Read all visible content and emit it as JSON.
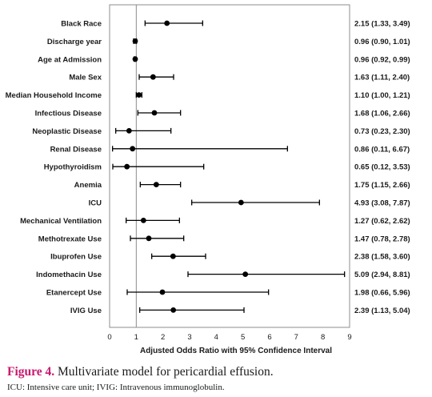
{
  "chart_data": {
    "type": "scatter",
    "subtype": "forest-plot",
    "xlabel": "Adjusted Odds Ratio with 95% Confidence Interval",
    "xlim": [
      0,
      9
    ],
    "xticks": [
      "0",
      "1",
      "2",
      "3",
      "4",
      "5",
      "6",
      "7",
      "8",
      "9"
    ],
    "reference_line": 1,
    "rows": [
      {
        "label": "Black Race",
        "or": 2.15,
        "lo": 1.33,
        "hi": 3.49,
        "text": "2.15 (1.33, 3.49)"
      },
      {
        "label": "Discharge year",
        "or": 0.96,
        "lo": 0.9,
        "hi": 1.01,
        "text": "0.96 (0.90, 1.01)"
      },
      {
        "label": "Age at Admission",
        "or": 0.96,
        "lo": 0.92,
        "hi": 0.99,
        "text": "0.96 (0.92, 0.99)"
      },
      {
        "label": "Male Sex",
        "or": 1.63,
        "lo": 1.11,
        "hi": 2.4,
        "text": "1.63 (1.11, 2.40)"
      },
      {
        "label": "Median Household Income",
        "or": 1.1,
        "lo": 1.0,
        "hi": 1.21,
        "text": "1.10 (1.00, 1.21)"
      },
      {
        "label": "Infectious Disease",
        "or": 1.68,
        "lo": 1.06,
        "hi": 2.66,
        "text": "1.68 (1.06, 2.66)"
      },
      {
        "label": "Neoplastic Disease",
        "or": 0.73,
        "lo": 0.23,
        "hi": 2.3,
        "text": "0.73 (0.23, 2.30)"
      },
      {
        "label": "Renal Disease",
        "or": 0.86,
        "lo": 0.11,
        "hi": 6.67,
        "text": "0.86 (0.11, 6.67)"
      },
      {
        "label": "Hypothyroidism",
        "or": 0.65,
        "lo": 0.12,
        "hi": 3.53,
        "text": "0.65 (0.12, 3.53)"
      },
      {
        "label": "Anemia",
        "or": 1.75,
        "lo": 1.15,
        "hi": 2.66,
        "text": "1.75 (1.15, 2.66)"
      },
      {
        "label": "ICU",
        "or": 4.93,
        "lo": 3.08,
        "hi": 7.87,
        "text": "4.93 (3.08, 7.87)"
      },
      {
        "label": "Mechanical Ventilation",
        "or": 1.27,
        "lo": 0.62,
        "hi": 2.62,
        "text": "1.27 (0.62, 2.62)"
      },
      {
        "label": "Methotrexate Use",
        "or": 1.47,
        "lo": 0.78,
        "hi": 2.78,
        "text": "1.47 (0.78, 2.78)"
      },
      {
        "label": "Ibuprofen Use",
        "or": 2.38,
        "lo": 1.58,
        "hi": 3.6,
        "text": "2.38 (1.58, 3.60)"
      },
      {
        "label": "Indomethacin Use",
        "or": 5.09,
        "lo": 2.94,
        "hi": 8.81,
        "text": "5.09 (2.94, 8.81)"
      },
      {
        "label": "Etanercept Use",
        "or": 1.98,
        "lo": 0.66,
        "hi": 5.96,
        "text": "1.98 (0.66, 5.96)"
      },
      {
        "label": "IVIG Use",
        "or": 2.39,
        "lo": 1.13,
        "hi": 5.04,
        "text": "2.39 (1.13, 5.04)"
      }
    ],
    "colors": {
      "marker": "#000000",
      "axis": "#8c8c8c",
      "reference_line": "#8c8c8c"
    }
  },
  "caption": {
    "figure_label": "Figure 4.",
    "text": " Multivariate model for pericardial effusion.",
    "label_color": "#c8196e"
  },
  "footnote": "ICU: Intensive care unit; IVIG: Intravenous immunoglobulin."
}
